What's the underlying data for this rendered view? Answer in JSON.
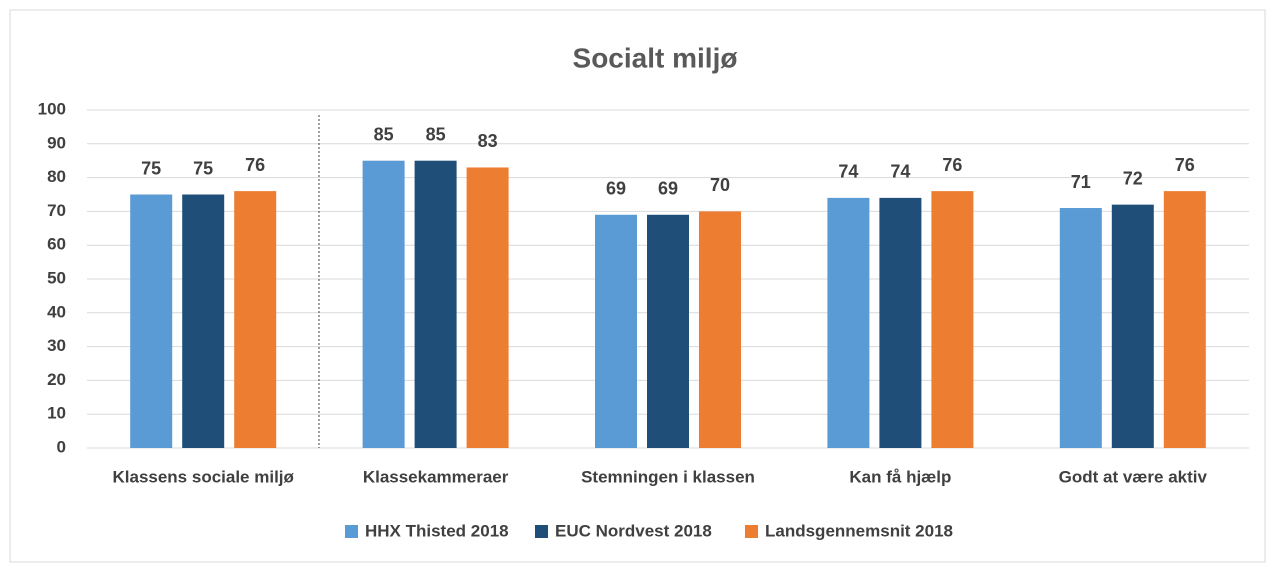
{
  "chart_data": {
    "type": "bar",
    "title": "Socialt miljø",
    "categories": [
      "Klassens sociale miljø",
      "Klassekammeraer",
      "Stemningen i klassen",
      "Kan få hjælp",
      "Godt at være aktiv"
    ],
    "series": [
      {
        "name": "HHX Thisted 2018",
        "color": "#5b9bd5",
        "values": [
          75,
          85,
          69,
          74,
          71
        ]
      },
      {
        "name": "EUC Nordvest 2018",
        "color": "#1f4e79",
        "values": [
          75,
          85,
          69,
          74,
          72
        ]
      },
      {
        "name": "Landsgennemsnit 2018",
        "color": "#ed7d31",
        "values": [
          76,
          83,
          70,
          76,
          76
        ]
      }
    ],
    "ylim": [
      0,
      100
    ],
    "yticks": [
      0,
      10,
      20,
      30,
      40,
      50,
      60,
      70,
      80,
      90,
      100
    ],
    "grid": true,
    "legend": "bottom"
  }
}
